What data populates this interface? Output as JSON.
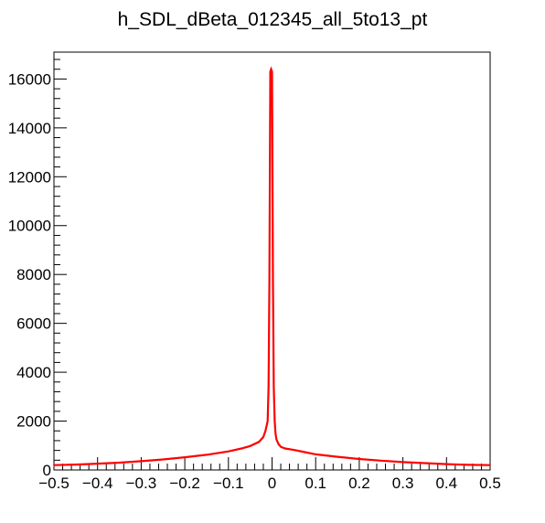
{
  "chart_data": {
    "type": "line",
    "title": "h_SDL_dBeta_012345_all_5to13_pt",
    "xlabel": "",
    "ylabel": "",
    "xlim": [
      -0.5,
      0.5
    ],
    "ylim": [
      0,
      17100
    ],
    "grid": false,
    "legend": "none",
    "x_ticks": [
      "−0.5",
      "−0.4",
      "−0.3",
      "−0.2",
      "−0.1",
      "0",
      "0.1",
      "0.2",
      "0.3",
      "0.4",
      "0.5"
    ],
    "x_tick_values": [
      -0.5,
      -0.4,
      -0.3,
      -0.2,
      -0.1,
      0,
      0.1,
      0.2,
      0.3,
      0.4,
      0.5
    ],
    "y_ticks": [
      "0",
      "2000",
      "4000",
      "6000",
      "8000",
      "10000",
      "12000",
      "14000",
      "16000"
    ],
    "y_tick_values": [
      0,
      2000,
      4000,
      6000,
      8000,
      10000,
      12000,
      14000,
      16000
    ],
    "series": [
      {
        "color": "#ff0000",
        "x": [
          -0.5,
          -0.45,
          -0.4,
          -0.35,
          -0.3,
          -0.25,
          -0.2,
          -0.15,
          -0.1,
          -0.07,
          -0.05,
          -0.03,
          -0.02,
          -0.015,
          -0.01,
          -0.008,
          -0.006,
          -0.004,
          -0.002,
          0,
          0.002,
          0.004,
          0.006,
          0.008,
          0.01,
          0.015,
          0.02,
          0.03,
          0.05,
          0.07,
          0.1,
          0.15,
          0.2,
          0.25,
          0.3,
          0.35,
          0.4,
          0.45,
          0.5
        ],
        "y": [
          200,
          220,
          260,
          300,
          360,
          430,
          520,
          620,
          760,
          880,
          980,
          1150,
          1350,
          1600,
          2000,
          3400,
          7700,
          16300,
          16400,
          16300,
          7700,
          3400,
          2000,
          1500,
          1250,
          1050,
          950,
          880,
          820,
          750,
          640,
          540,
          450,
          380,
          320,
          280,
          240,
          210,
          200
        ]
      }
    ]
  }
}
